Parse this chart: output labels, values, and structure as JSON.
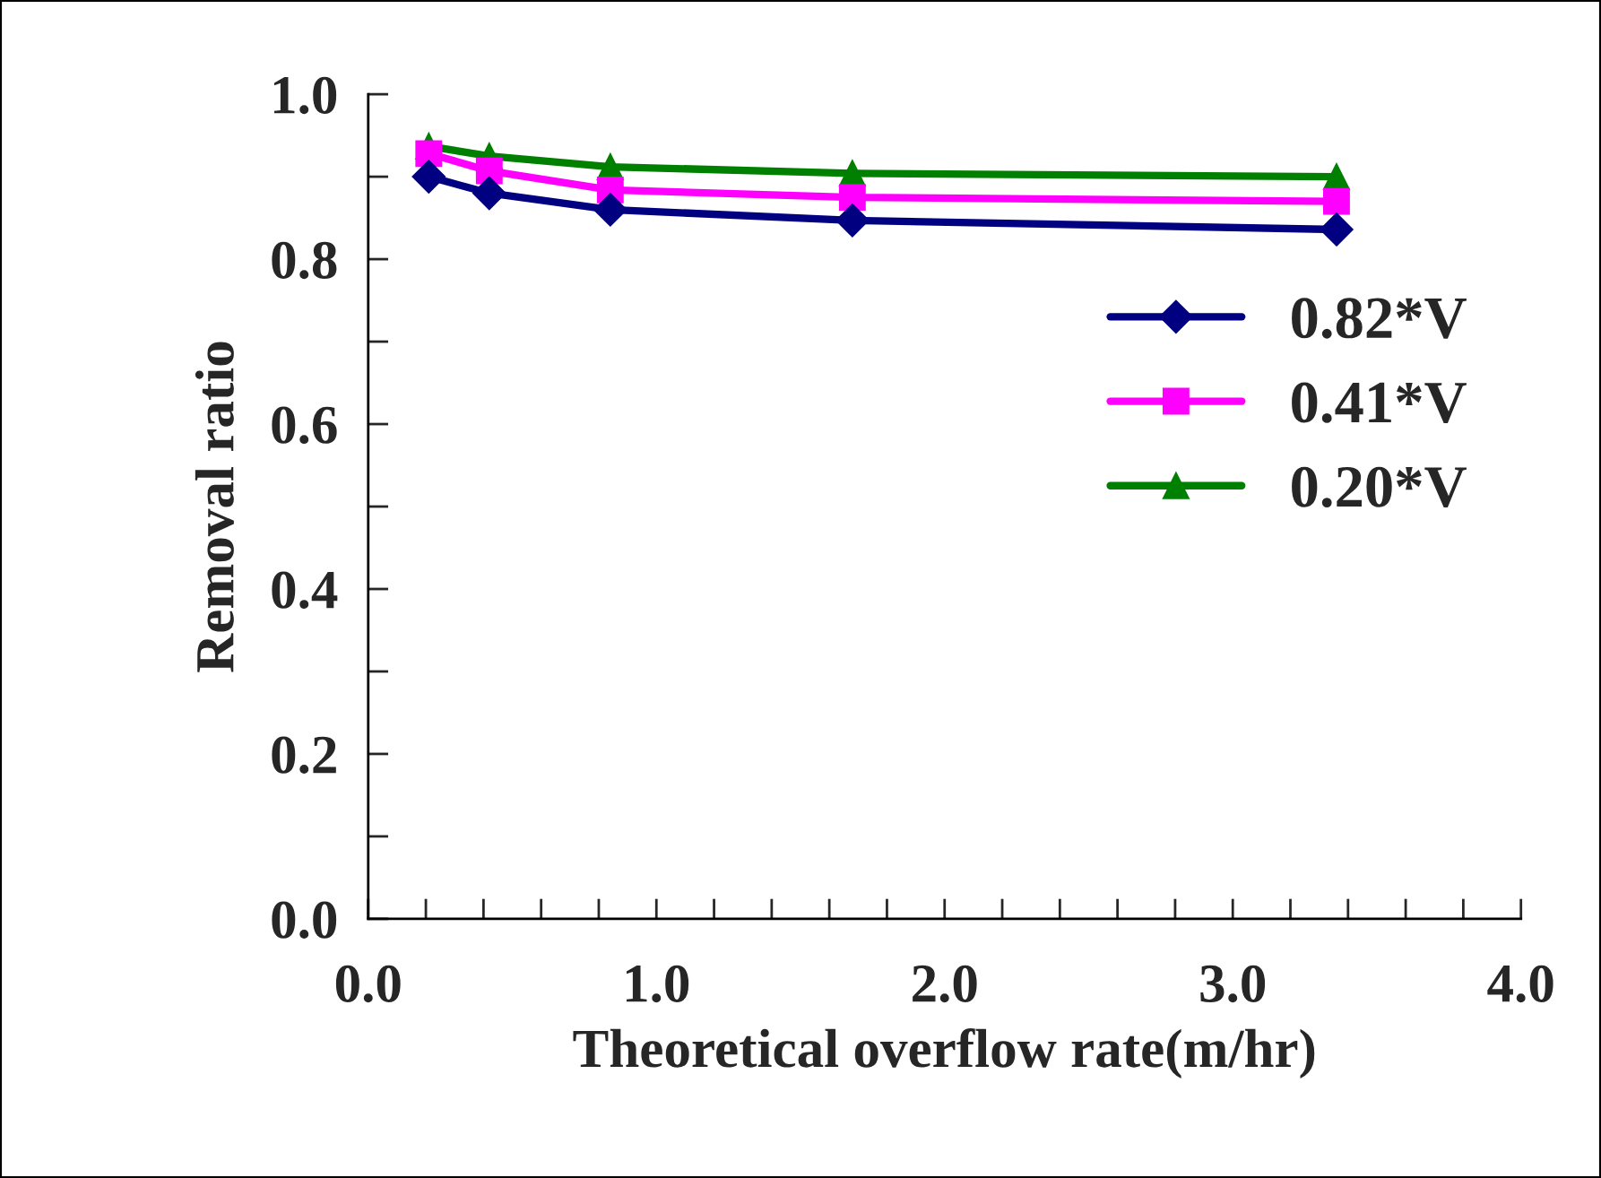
{
  "chart_data": {
    "type": "line",
    "xlabel": "Theoretical overflow rate(m/hr)",
    "ylabel": "Removal ratio",
    "x": [
      0.21,
      0.42,
      0.84,
      1.68,
      3.36
    ],
    "series": [
      {
        "name": "0.82*V",
        "color": "#000080",
        "values": [
          0.9,
          0.88,
          0.86,
          0.847,
          0.836
        ],
        "marker": "diamond"
      },
      {
        "name": "0.41*V",
        "color": "#ff00ff",
        "values": [
          0.928,
          0.907,
          0.884,
          0.875,
          0.87
        ],
        "marker": "square"
      },
      {
        "name": "0.20*V",
        "color": "#008000",
        "values": [
          0.937,
          0.925,
          0.912,
          0.904,
          0.9
        ],
        "marker": "triangle"
      }
    ],
    "xlim": [
      0,
      4
    ],
    "ylim": [
      0,
      1
    ],
    "xticks": [
      "0.0",
      {
        "value": 0.2,
        "label": null
      },
      {
        "value": 0.4,
        "label": null
      },
      {
        "value": 0.6,
        "label": null
      },
      {
        "value": 0.8,
        "label": null
      },
      {
        "value": 1,
        "label": "1.0"
      },
      {
        "value": 1.2,
        "label": null
      },
      {
        "value": 1.4,
        "label": null
      },
      {
        "value": 1.6,
        "label": null
      },
      {
        "value": 1.8,
        "label": null
      },
      {
        "value": 2,
        "label": "2.0"
      },
      {
        "value": 2.2,
        "label": null
      },
      {
        "value": 2.4,
        "label": null
      },
      {
        "value": 2.6,
        "label": null
      },
      {
        "value": 2.8,
        "label": null
      },
      {
        "value": 3,
        "label": "3.0"
      },
      {
        "value": 3.2,
        "label": null
      },
      {
        "value": 3.4,
        "label": null
      },
      {
        "value": 3.6,
        "label": null
      },
      {
        "value": 3.8,
        "label": null
      },
      {
        "value": 4,
        "label": "4.0"
      }
    ],
    "yticks": [
      {
        "value": 0,
        "label": "0.0"
      },
      {
        "value": 0.1,
        "label": null
      },
      {
        "value": 0.2,
        "label": "0.2"
      },
      {
        "value": 0.3,
        "label": null
      },
      {
        "value": 0.4,
        "label": "0.4"
      },
      {
        "value": 0.5,
        "label": null
      },
      {
        "value": 0.6,
        "label": "0.6"
      },
      {
        "value": 0.7,
        "label": null
      },
      {
        "value": 0.8,
        "label": "0.8"
      },
      {
        "value": 0.9,
        "label": null
      },
      {
        "value": 1,
        "label": "1.0"
      }
    ],
    "grid": false,
    "legend": "right",
    "line_style": "solid"
  }
}
